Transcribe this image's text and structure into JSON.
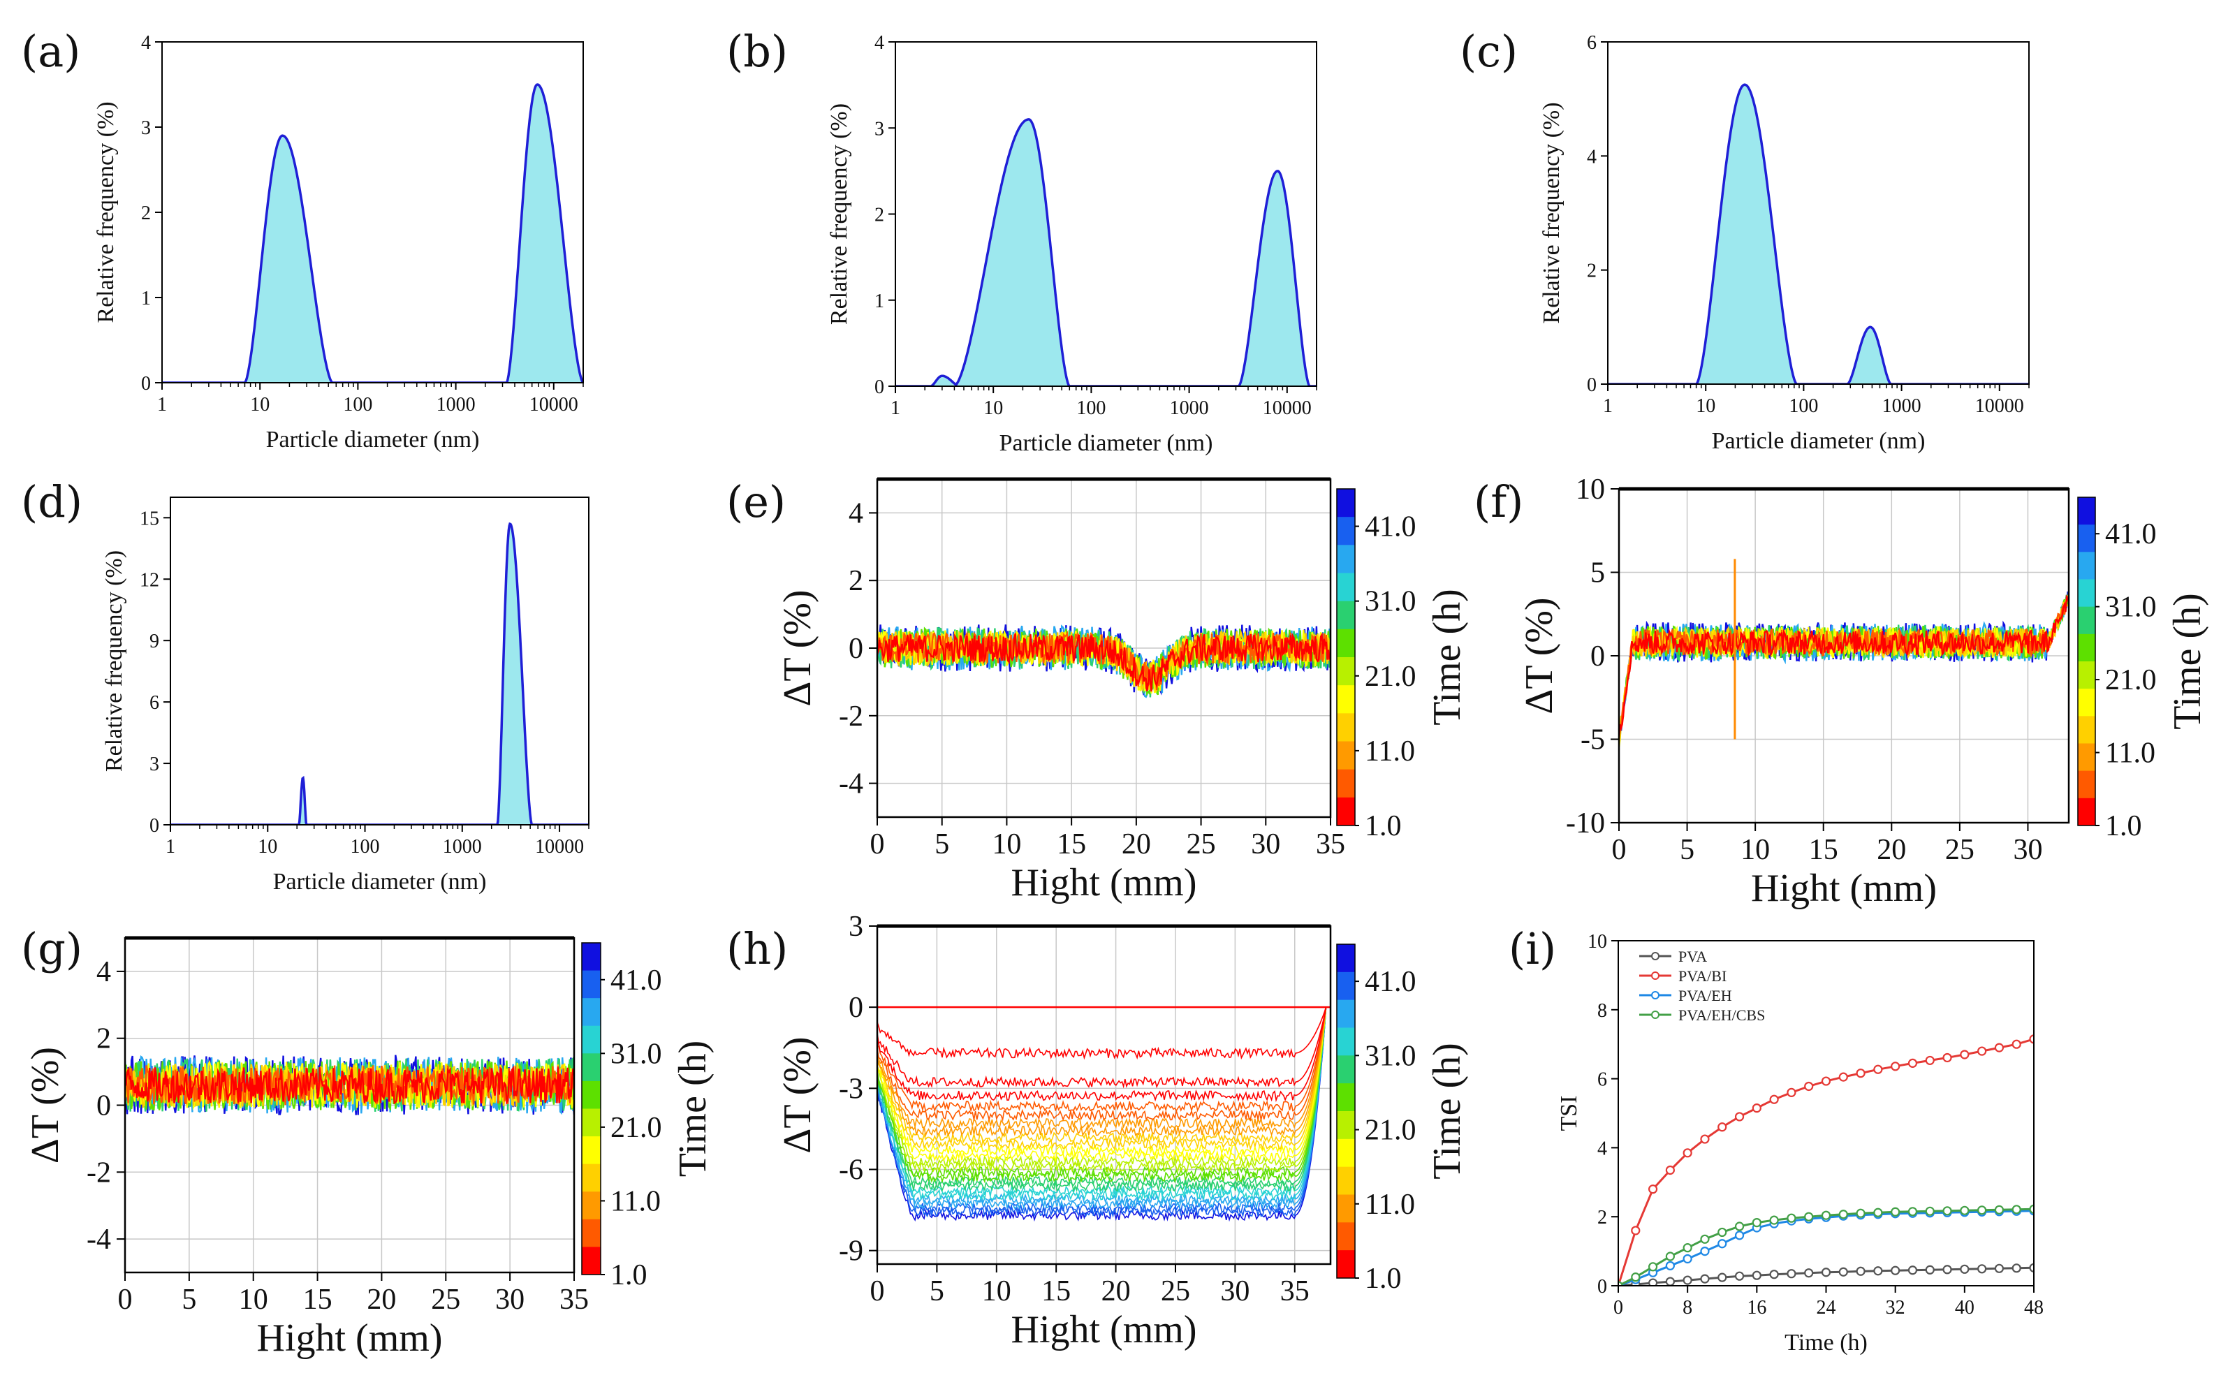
{
  "figure": {
    "description_labels": [
      "(a)",
      "(b)",
      "(c)",
      "(d)",
      "(e)",
      "(f)",
      "(g)",
      "(h)",
      "(i)"
    ]
  },
  "chart_data": [
    {
      "id": "a",
      "panel_label": "(a)",
      "type": "area",
      "xlabel": "Particle diameter (nm)",
      "ylabel": "Relative frequency (%)",
      "xscale": "log",
      "xlim": [
        1,
        20000
      ],
      "ylim": [
        0,
        4
      ],
      "xticks": [
        1,
        10,
        100,
        1000,
        10000
      ],
      "xticklabels": [
        "1",
        "10",
        "100",
        "1000",
        "10000"
      ],
      "yticks": [
        0,
        1,
        2,
        3,
        4
      ],
      "yticklabels": [
        "0",
        "1",
        "2",
        "3",
        "4"
      ],
      "peaks": [
        {
          "start": 7,
          "peak": 17,
          "end": 55,
          "height": 2.9
        },
        {
          "start": 3300,
          "peak": 6800,
          "end": 20000,
          "height": 3.5
        }
      ],
      "fill_color": "#9de8ee",
      "line_color": "#1f1fd6"
    },
    {
      "id": "b",
      "panel_label": "(b)",
      "type": "area",
      "xlabel": "Particle diameter (nm)",
      "ylabel": "Relative frequency (%)",
      "xscale": "log",
      "xlim": [
        1,
        20000
      ],
      "ylim": [
        0,
        4
      ],
      "xticks": [
        1,
        10,
        100,
        1000,
        10000
      ],
      "xticklabels": [
        "1",
        "10",
        "100",
        "1000",
        "10000"
      ],
      "yticks": [
        0,
        1,
        2,
        3,
        4
      ],
      "yticklabels": [
        "0",
        "1",
        "2",
        "3",
        "4"
      ],
      "peaks": [
        {
          "start": 2.3,
          "peak": 3,
          "end": 4.5,
          "height": 0.12
        },
        {
          "start": 4,
          "peak": 23,
          "end": 60,
          "height": 3.1
        },
        {
          "start": 3200,
          "peak": 8000,
          "end": 17000,
          "height": 2.5
        }
      ],
      "fill_color": "#9de8ee",
      "line_color": "#1f1fd6"
    },
    {
      "id": "c",
      "panel_label": "(c)",
      "type": "area",
      "xlabel": "Particle diameter (nm)",
      "ylabel": "Relative frequency (%)",
      "xscale": "log",
      "xlim": [
        1,
        20000
      ],
      "ylim": [
        0,
        6
      ],
      "xticks": [
        1,
        10,
        100,
        1000,
        10000
      ],
      "xticklabels": [
        "1",
        "10",
        "100",
        "1000",
        "10000"
      ],
      "yticks": [
        0,
        2,
        4,
        6
      ],
      "yticklabels": [
        "0",
        "2",
        "4",
        "6"
      ],
      "peaks": [
        {
          "start": 8,
          "peak": 25,
          "end": 85,
          "height": 5.25
        },
        {
          "start": 280,
          "peak": 480,
          "end": 780,
          "height": 1.0
        }
      ],
      "fill_color": "#9de8ee",
      "line_color": "#1f1fd6"
    },
    {
      "id": "d",
      "panel_label": "(d)",
      "type": "area",
      "xlabel": "Particle diameter (nm)",
      "ylabel": "Relative frequency (%)",
      "xscale": "log",
      "xlim": [
        1,
        20000
      ],
      "ylim": [
        0,
        16
      ],
      "xticks": [
        1,
        10,
        100,
        1000,
        10000
      ],
      "xticklabels": [
        "1",
        "10",
        "100",
        "1000",
        "10000"
      ],
      "yticks": [
        0,
        3,
        6,
        9,
        12,
        15
      ],
      "yticklabels": [
        "0",
        "3",
        "6",
        "9",
        "12",
        "15"
      ],
      "peaks": [
        {
          "start": 21,
          "peak": 23,
          "end": 25,
          "height": 2.3
        },
        {
          "start": 2300,
          "peak": 3100,
          "end": 5200,
          "height": 14.7
        }
      ],
      "fill_color": "#9de8ee",
      "line_color": "#1f1fd6"
    },
    {
      "id": "e",
      "panel_label": "(e)",
      "type": "line",
      "xlabel": "Hight (mm)",
      "ylabel": "ΔT (%)",
      "xlim": [
        0,
        35
      ],
      "ylim": [
        -5,
        5
      ],
      "xticks": [
        0,
        5,
        10,
        15,
        20,
        25,
        30,
        35
      ],
      "xticklabels": [
        "0",
        "5",
        "10",
        "15",
        "20",
        "25",
        "30",
        "35"
      ],
      "yticks": [
        -4,
        -2,
        0,
        2,
        4
      ],
      "yticklabels": [
        "-4",
        "-2",
        "0",
        "2",
        "4"
      ],
      "colorbar": {
        "label": "Time (h)",
        "ticklabels": [
          "1.0",
          "11.0",
          "21.0",
          "31.0",
          "41.0"
        ],
        "range_h": [
          1,
          46
        ]
      },
      "series_summary": {
        "baseline": 0,
        "noise_amplitude": 0.7,
        "dip": {
          "center": 21,
          "width": 2,
          "depth": -0.9
        },
        "n_series": 8
      }
    },
    {
      "id": "f",
      "panel_label": "(f)",
      "type": "line",
      "xlabel": "Hight (mm)",
      "ylabel": "ΔT (%)",
      "xlim": [
        0,
        33
      ],
      "ylim": [
        -10,
        10
      ],
      "xticks": [
        0,
        5,
        10,
        15,
        20,
        25,
        30
      ],
      "xticklabels": [
        "0",
        "5",
        "10",
        "15",
        "20",
        "25",
        "30"
      ],
      "yticks": [
        -10,
        -5,
        0,
        5,
        10
      ],
      "yticklabels": [
        "-10",
        "-5",
        "0",
        "5",
        "10"
      ],
      "colorbar": {
        "label": "Time (h)",
        "ticklabels": [
          "1.0",
          "11.0",
          "21.0",
          "31.0",
          "41.0"
        ],
        "range_h": [
          1,
          46
        ]
      },
      "series_summary": {
        "baseline": 0.8,
        "noise_amplitude": 1.2,
        "start_value": -5,
        "spike": {
          "x": 8.5,
          "max": 5.8,
          "min": -5
        },
        "end_value": 3.5,
        "n_series": 8
      }
    },
    {
      "id": "g",
      "panel_label": "(g)",
      "type": "line",
      "xlabel": "Hight (mm)",
      "ylabel": "ΔT (%)",
      "xlim": [
        0,
        35
      ],
      "ylim": [
        -5,
        5
      ],
      "xticks": [
        0,
        5,
        10,
        15,
        20,
        25,
        30,
        35
      ],
      "xticklabels": [
        "0",
        "5",
        "10",
        "15",
        "20",
        "25",
        "30",
        "35"
      ],
      "yticks": [
        -4,
        -2,
        0,
        2,
        4
      ],
      "yticklabels": [
        "-4",
        "-2",
        "0",
        "2",
        "4"
      ],
      "colorbar": {
        "label": "Time (h)",
        "ticklabels": [
          "1.0",
          "11.0",
          "21.0",
          "31.0",
          "41.0"
        ],
        "range_h": [
          1,
          46
        ]
      },
      "series_summary": {
        "baseline": 0.6,
        "noise_amplitude": 0.9,
        "n_series": 8
      }
    },
    {
      "id": "h",
      "panel_label": "(h)",
      "type": "line",
      "xlabel": "Hight (mm)",
      "ylabel": "ΔT (%)",
      "xlim": [
        0,
        38
      ],
      "ylim": [
        -9.5,
        3
      ],
      "xticks": [
        0,
        5,
        10,
        15,
        20,
        25,
        30,
        35
      ],
      "xticklabels": [
        "0",
        "5",
        "10",
        "15",
        "20",
        "25",
        "30",
        "35"
      ],
      "yticks": [
        -9,
        -6,
        -3,
        0,
        3
      ],
      "yticklabels": [
        "-9",
        "-6",
        "-3",
        "0",
        "3"
      ],
      "colorbar": {
        "label": "Time (h)",
        "ticklabels": [
          "1.0",
          "11.0",
          "21.0",
          "31.0",
          "41.0"
        ],
        "range_h": [
          1,
          46
        ]
      },
      "series_summary": {
        "final_level": -7.7,
        "first_level": -1.7,
        "plateau": [
          3,
          35
        ],
        "end_rise_x": 37.5,
        "n_series": 24
      }
    },
    {
      "id": "i",
      "panel_label": "(i)",
      "type": "line",
      "xlabel": "Time (h)",
      "ylabel": "TSI",
      "xlim": [
        0,
        48
      ],
      "ylim": [
        0,
        10
      ],
      "xticks": [
        0,
        8,
        16,
        24,
        32,
        40,
        48
      ],
      "xticklabels": [
        "0",
        "8",
        "16",
        "24",
        "32",
        "40",
        "48"
      ],
      "yticks": [
        0,
        2,
        4,
        6,
        8,
        10
      ],
      "yticklabels": [
        "0",
        "2",
        "4",
        "6",
        "8",
        "10"
      ],
      "x": [
        0,
        2,
        4,
        6,
        8,
        10,
        12,
        14,
        16,
        18,
        20,
        22,
        24,
        26,
        28,
        30,
        32,
        34,
        36,
        38,
        40,
        42,
        44,
        46,
        48
      ],
      "series": [
        {
          "name": "PVA",
          "color": "#555555",
          "values": [
            0,
            0.04,
            0.08,
            0.12,
            0.16,
            0.2,
            0.24,
            0.28,
            0.3,
            0.33,
            0.35,
            0.37,
            0.39,
            0.4,
            0.42,
            0.43,
            0.44,
            0.45,
            0.46,
            0.47,
            0.48,
            0.49,
            0.5,
            0.51,
            0.52
          ]
        },
        {
          "name": "PVA/BI",
          "color": "#e53935",
          "values": [
            0,
            1.6,
            2.8,
            3.35,
            3.85,
            4.25,
            4.6,
            4.9,
            5.15,
            5.4,
            5.6,
            5.78,
            5.93,
            6.05,
            6.16,
            6.27,
            6.36,
            6.45,
            6.53,
            6.61,
            6.7,
            6.8,
            6.9,
            7.0,
            7.15
          ]
        },
        {
          "name": "PVA/EH",
          "color": "#1e88e5",
          "values": [
            0,
            0.18,
            0.38,
            0.58,
            0.78,
            1.0,
            1.22,
            1.46,
            1.68,
            1.8,
            1.88,
            1.94,
            1.98,
            2.02,
            2.05,
            2.07,
            2.09,
            2.1,
            2.11,
            2.12,
            2.13,
            2.14,
            2.15,
            2.16,
            2.17
          ]
        },
        {
          "name": "PVA/EH/CBS",
          "color": "#43a047",
          "values": [
            0,
            0.25,
            0.55,
            0.85,
            1.1,
            1.35,
            1.55,
            1.72,
            1.83,
            1.9,
            1.96,
            2.0,
            2.04,
            2.07,
            2.1,
            2.12,
            2.14,
            2.15,
            2.16,
            2.17,
            2.18,
            2.19,
            2.2,
            2.21,
            2.22
          ]
        }
      ],
      "legend": {
        "placement": "top-left"
      }
    }
  ]
}
